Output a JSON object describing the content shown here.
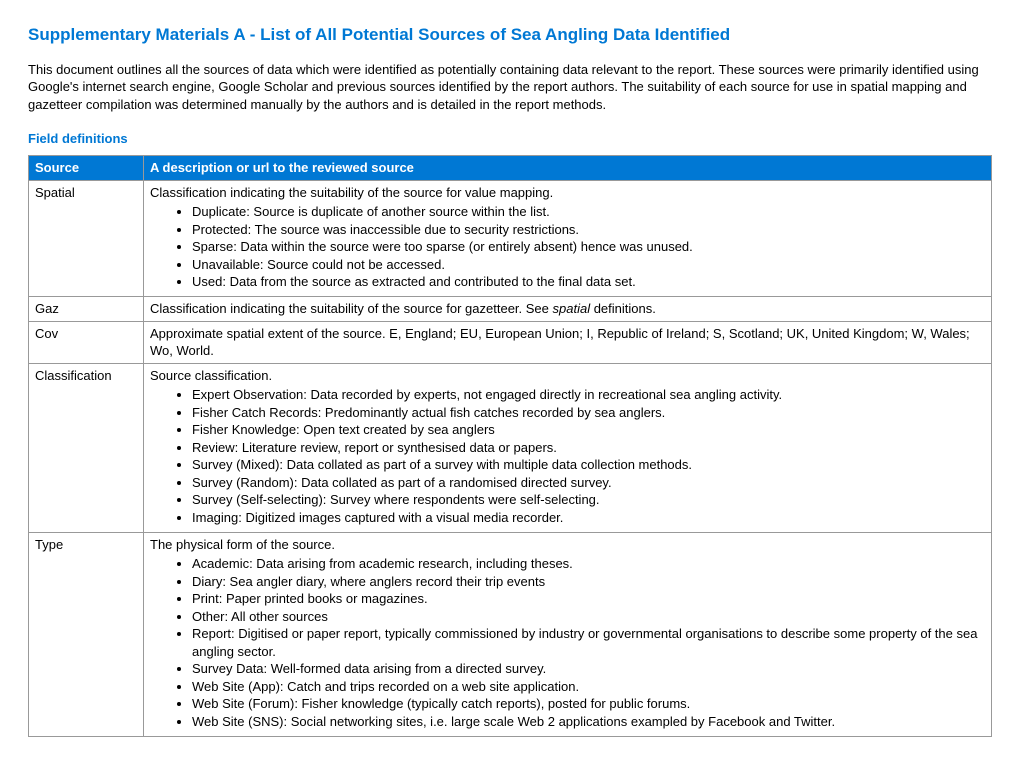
{
  "title": "Supplementary Materials A - List of All Potential Sources of Sea Angling Data Identified",
  "intro": "This document outlines all the sources of data which were identified as potentially containing data relevant to the report. These sources were primarily identified using Google's internet search engine, Google Scholar and previous sources identified by the report authors. The suitability of each source for use in spatial mapping and gazetteer compilation was determined manually by the authors and is detailed in the report methods.",
  "subheading": "Field definitions",
  "table": {
    "header": {
      "col1": "Source",
      "col2": "A description or url to the reviewed source"
    },
    "rows": {
      "spatial": {
        "label": "Spatial",
        "lead": "Classification indicating the suitability of the source for value mapping.",
        "items": [
          "Duplicate: Source is duplicate of another source within the list.",
          "Protected: The source was inaccessible due to security restrictions.",
          "Sparse: Data within the source were too sparse (or entirely absent) hence was unused.",
          "Unavailable: Source could not be accessed.",
          "Used: Data from the source as extracted and contributed to the final data set."
        ]
      },
      "gaz": {
        "label": "Gaz",
        "lead_a": "Classification indicating the suitability of the source for gazetteer. See ",
        "lead_i": "spatial",
        "lead_b": " definitions."
      },
      "cov": {
        "label": "Cov",
        "lead": "Approximate spatial extent of the source. E, England; EU, European Union; I, Republic of Ireland; S, Scotland; UK, United Kingdom; W, Wales; Wo, World."
      },
      "classification": {
        "label": "Classification",
        "lead": "Source classification.",
        "items": [
          "Expert Observation: Data recorded by experts, not engaged directly in recreational sea angling activity.",
          "Fisher Catch Records: Predominantly actual fish catches recorded by sea anglers.",
          "Fisher Knowledge: Open text created by sea anglers",
          "Review: Literature review, report or synthesised data or papers.",
          "Survey (Mixed): Data collated as part of a survey with multiple data collection methods.",
          "Survey (Random): Data collated as part of a randomised directed survey.",
          "Survey (Self-selecting): Survey where respondents were self-selecting.",
          "Imaging: Digitized images captured with a visual media recorder."
        ]
      },
      "type": {
        "label": "Type",
        "lead": "The physical form of the source.",
        "items": [
          "Academic: Data arising from academic research, including theses.",
          "Diary: Sea angler diary, where anglers record their trip events",
          "Print: Paper printed books or magazines.",
          "Other: All other sources",
          "Report: Digitised or paper report, typically commissioned by industry or governmental organisations to describe some property of the sea angling sector.",
          "Survey Data: Well-formed data arising from a directed survey.",
          "Web Site (App): Catch and trips recorded on a web site application.",
          "Web Site (Forum): Fisher knowledge (typically catch reports), posted for public forums.",
          "Web Site (SNS): Social networking sites, i.e. large scale Web 2 applications exampled by Facebook and Twitter."
        ]
      }
    }
  }
}
